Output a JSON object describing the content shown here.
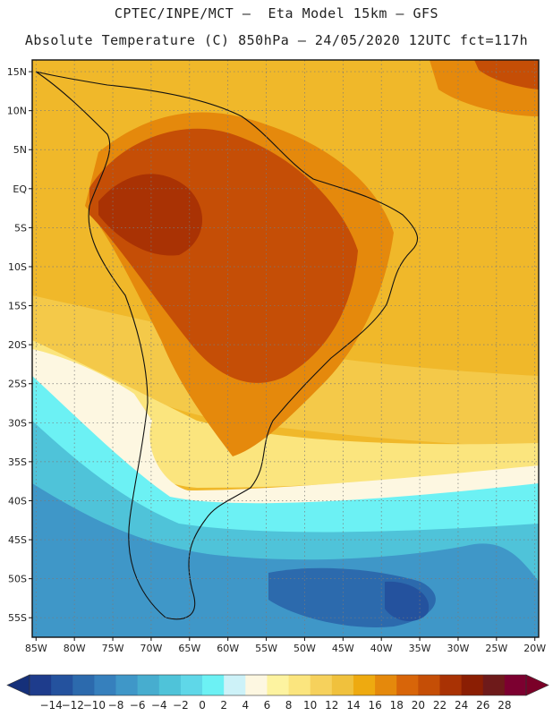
{
  "header": {
    "line1": "CPTEC/INPE/MCT –  Eta Model 15km – GFS",
    "line2": "Absolute Temperature (C) 850hPa – 24/05/2020 12UTC fct=117h"
  },
  "map": {
    "region": "South America",
    "lon_range": [
      -85.5,
      -19.5
    ],
    "lat_range": [
      -57.5,
      16.5
    ],
    "lon_ticks": [
      "85W",
      "80W",
      "75W",
      "70W",
      "65W",
      "60W",
      "55W",
      "50W",
      "45W",
      "40W",
      "35W",
      "30W",
      "25W",
      "20W"
    ],
    "lat_ticks": [
      "15N",
      "10N",
      "5N",
      "EQ",
      "5S",
      "10S",
      "15S",
      "20S",
      "25S",
      "30S",
      "35S",
      "40S",
      "45S",
      "50S",
      "55S"
    ]
  },
  "colorbar": {
    "labels": [
      "-14",
      "-12",
      "-10",
      "-8",
      "-6",
      "-4",
      "-2",
      "0",
      "2",
      "4",
      "6",
      "8",
      "10",
      "12",
      "14",
      "16",
      "18",
      "20",
      "22",
      "24",
      "26",
      "28"
    ],
    "colors": [
      "#1e3c8c",
      "#24529e",
      "#2c6aad",
      "#3680bd",
      "#3f97c8",
      "#47adcf",
      "#4fc3d9",
      "#5fd7e8",
      "#6cf1f4",
      "#cdf2f8",
      "#fdf7e1",
      "#fdf3a0",
      "#fbe57e",
      "#f6d15c",
      "#f0c13d",
      "#eeaa10",
      "#e5890c",
      "#d86509",
      "#c54e06",
      "#a93204",
      "#8b1e03",
      "#6e1a1a",
      "#7c0030"
    ],
    "below_color": "#15307a",
    "above_color": "#7a0028"
  }
}
